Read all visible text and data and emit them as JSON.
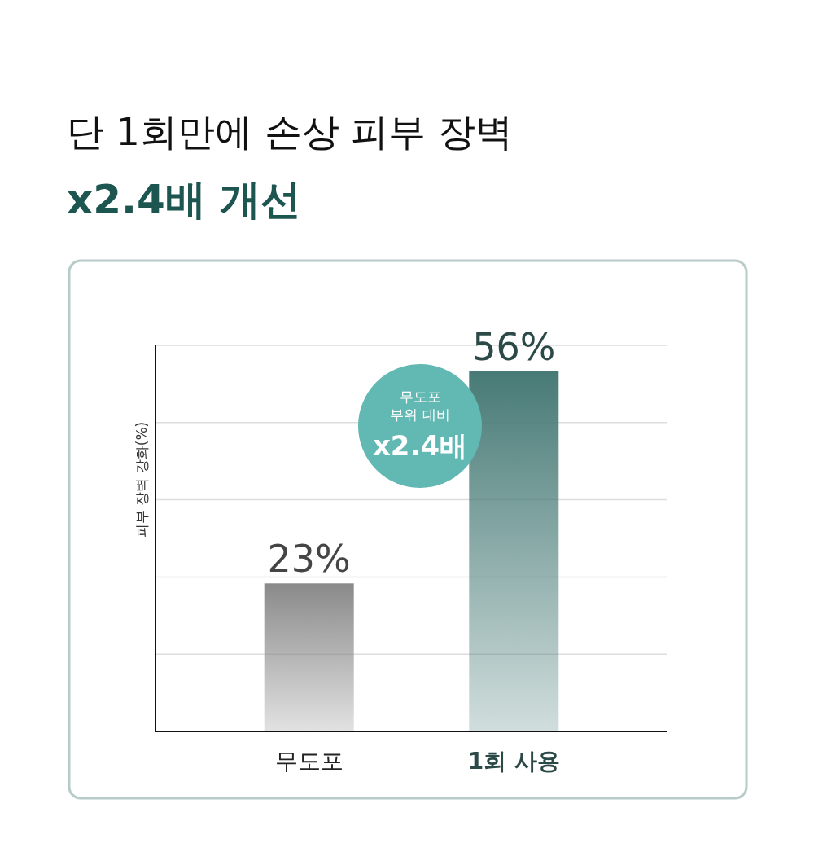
{
  "chart_data": {
    "type": "bar",
    "title": "단 1회만에 손상 피부 장벽",
    "subtitle": "x2.4배 개선",
    "ylabel": "피부 장벽 강화(%)",
    "categories": [
      "무도포",
      "1회 사용"
    ],
    "values": [
      23,
      56
    ],
    "value_labels": [
      "23%",
      "56%"
    ],
    "colors": [
      "#8a8a8a",
      "#477a76"
    ],
    "ylim": [
      0,
      60
    ],
    "yticks": [
      {
        "value": 12,
        "label": null
      },
      {
        "value": 24,
        "label": null
      },
      {
        "value": 36,
        "label": null
      },
      {
        "value": 48,
        "label": null
      },
      {
        "value": 60,
        "label": null
      }
    ],
    "grid": "y",
    "annotations": [
      "무도포\n부위 대비\nx2.4배"
    ]
  }
}
